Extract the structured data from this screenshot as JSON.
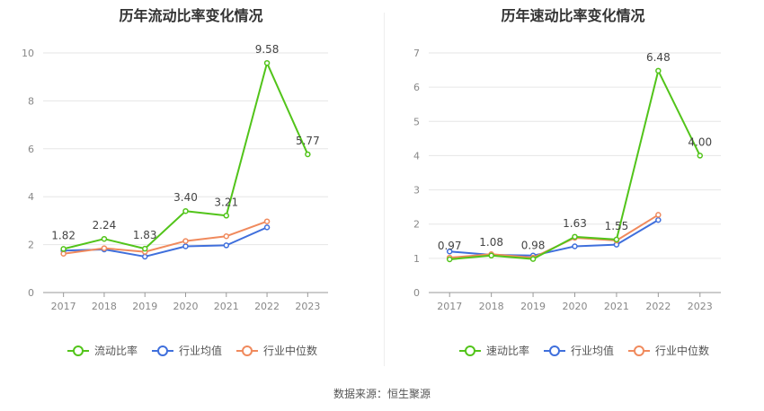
{
  "source": "数据来源：恒生聚源",
  "chart_data": [
    {
      "type": "line",
      "title": "历年流动比率变化情况",
      "categories": [
        "2017",
        "2018",
        "2019",
        "2020",
        "2021",
        "2022",
        "2023"
      ],
      "ylim": [
        0,
        10
      ],
      "yticks": [
        0,
        2,
        4,
        6,
        8,
        10
      ],
      "grid": true,
      "legend": "bottom",
      "series": [
        {
          "name": "流动比率",
          "color": "#52c41a",
          "values": [
            1.82,
            2.24,
            1.83,
            3.4,
            3.21,
            9.58,
            5.77
          ],
          "labels": [
            "1.82",
            "2.24",
            "1.83",
            "3.40",
            "3.21",
            "9.58",
            "5.77"
          ]
        },
        {
          "name": "行业均值",
          "color": "#3f6fdc",
          "values": [
            1.75,
            1.8,
            1.5,
            1.93,
            1.97,
            2.72,
            null
          ]
        },
        {
          "name": "行业中位数",
          "color": "#f08a5d",
          "values": [
            1.62,
            1.85,
            1.7,
            2.15,
            2.35,
            2.97,
            null
          ]
        }
      ]
    },
    {
      "type": "line",
      "title": "历年速动比率变化情况",
      "categories": [
        "2017",
        "2018",
        "2019",
        "2020",
        "2021",
        "2022",
        "2023"
      ],
      "ylim": [
        0,
        7
      ],
      "yticks": [
        0,
        1,
        2,
        3,
        4,
        5,
        6,
        7
      ],
      "grid": true,
      "legend": "bottom",
      "series": [
        {
          "name": "速动比率",
          "color": "#52c41a",
          "values": [
            0.97,
            1.08,
            0.98,
            1.63,
            1.55,
            6.48,
            4.0
          ],
          "labels": [
            "0.97",
            "1.08",
            "0.98",
            "1.63",
            "1.55",
            "6.48",
            "4.00"
          ]
        },
        {
          "name": "行业均值",
          "color": "#3f6fdc",
          "values": [
            1.2,
            1.1,
            1.08,
            1.35,
            1.4,
            2.12,
            null
          ]
        },
        {
          "name": "行业中位数",
          "color": "#f08a5d",
          "values": [
            1.02,
            1.12,
            1.02,
            1.6,
            1.52,
            2.27,
            null
          ]
        }
      ]
    }
  ]
}
